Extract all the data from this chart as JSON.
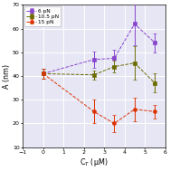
{
  "title": "",
  "xlabel": "C$_T$ (μM)",
  "ylabel": "A (nm)",
  "xlim": [
    -1,
    6
  ],
  "ylim": [
    10,
    70
  ],
  "yticks": [
    10,
    20,
    30,
    40,
    50,
    60,
    70
  ],
  "xticks": [
    -1,
    0,
    1,
    2,
    3,
    4,
    5,
    6
  ],
  "background_color": "#e6e6f5",
  "series": [
    {
      "label": "6 pN",
      "color": "#8844cc",
      "marker": "s",
      "markersize": 2.8,
      "x": [
        0,
        2.5,
        3.5,
        4.5,
        5.5
      ],
      "y": [
        41,
        47,
        47.5,
        62,
        54
      ],
      "yerr": [
        2,
        3.5,
        3.5,
        9,
        4
      ]
    },
    {
      "label": "10.5 pN",
      "color": "#6b6b00",
      "marker": "s",
      "markersize": 2.8,
      "x": [
        0,
        2.5,
        3.5,
        4.5,
        5.5
      ],
      "y": [
        41,
        40.5,
        44,
        45.5,
        37
      ],
      "yerr": [
        2,
        2,
        2.5,
        7,
        4
      ]
    },
    {
      "label": "15 pN",
      "color": "#dd3300",
      "marker": "o",
      "markersize": 2.8,
      "x": [
        0,
        2.5,
        3.5,
        4.5,
        5.5
      ],
      "y": [
        41,
        25,
        20,
        26,
        25
      ],
      "yerr": [
        2,
        5,
        3.5,
        5,
        3
      ]
    }
  ],
  "legend_fontsize": 4.2,
  "tick_fontsize": 4.5,
  "label_fontsize": 5.8
}
